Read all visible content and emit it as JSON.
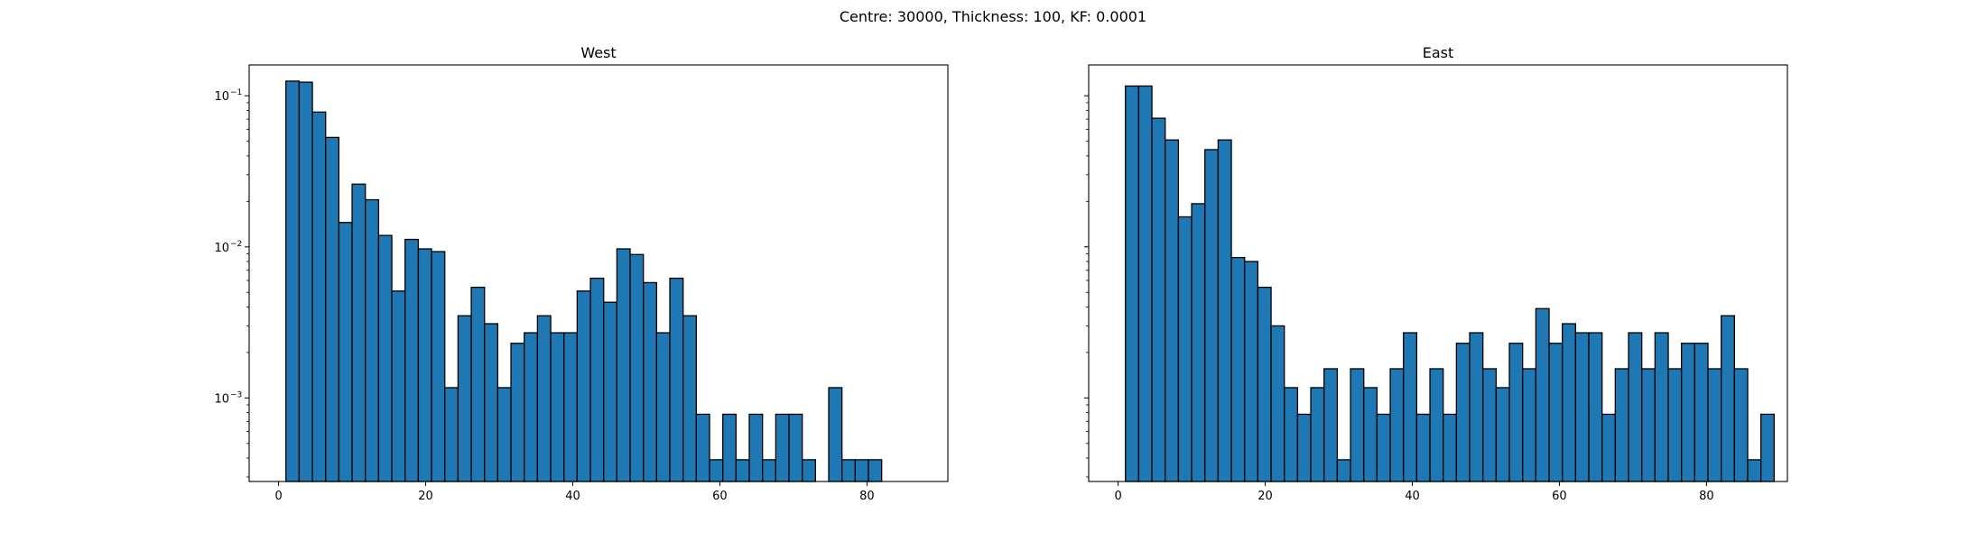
{
  "figure": {
    "suptitle": "Centre: 30000, Thickness: 100, KF: 0.0001"
  },
  "chart_data": [
    {
      "type": "bar",
      "subtype": "histogram",
      "title": "West",
      "xlabel": "",
      "ylabel": "",
      "yscale": "log",
      "xlim": [
        -4,
        91
      ],
      "ylim": [
        0.00028,
        0.16
      ],
      "x_ticks": [
        0,
        20,
        40,
        60,
        80
      ],
      "y_ticks": [
        0.001,
        0.01,
        0.1
      ],
      "y_tick_labels": [
        [
          "10",
          "−3"
        ],
        [
          "10",
          "−2"
        ],
        [
          "10",
          "−1"
        ]
      ],
      "show_y_tick_labels": true,
      "bin_start": 1,
      "bin_width": 1.8,
      "values": [
        0.125,
        0.123,
        0.078,
        0.053,
        0.0145,
        0.026,
        0.0205,
        0.0119,
        0.0051,
        0.0112,
        0.0097,
        0.0093,
        0.00117,
        0.0035,
        0.0054,
        0.0031,
        0.00117,
        0.0023,
        0.0027,
        0.0035,
        0.0027,
        0.0027,
        0.0051,
        0.0062,
        0.0043,
        0.0097,
        0.0089,
        0.0058,
        0.0027,
        0.0062,
        0.0035,
        0.00078,
        0.00039,
        0.00078,
        0.00039,
        0.00078,
        0.00039,
        0.00078,
        0.00078,
        0.00039,
        0,
        0.00117,
        0.00039,
        0.00039,
        0.00039
      ],
      "bar_color": "#1f77b4",
      "edge_color": "#000000",
      "grid": false
    },
    {
      "type": "bar",
      "subtype": "histogram",
      "title": "East",
      "xlabel": "",
      "ylabel": "",
      "yscale": "log",
      "xlim": [
        -4,
        91
      ],
      "ylim": [
        0.00028,
        0.16
      ],
      "x_ticks": [
        0,
        20,
        40,
        60,
        80
      ],
      "y_ticks": [
        0.001,
        0.01,
        0.1
      ],
      "y_tick_labels": [],
      "show_y_tick_labels": false,
      "bin_start": 1,
      "bin_width": 1.8,
      "values": [
        0.116,
        0.116,
        0.071,
        0.051,
        0.0158,
        0.0193,
        0.044,
        0.051,
        0.0085,
        0.008,
        0.0054,
        0.003,
        0.00117,
        0.00078,
        0.00117,
        0.00156,
        0.00039,
        0.00156,
        0.00117,
        0.00078,
        0.00156,
        0.0027,
        0.00078,
        0.00156,
        0.00078,
        0.0023,
        0.0027,
        0.00156,
        0.00117,
        0.0023,
        0.00156,
        0.0039,
        0.0023,
        0.0031,
        0.0027,
        0.0027,
        0.00078,
        0.00156,
        0.0027,
        0.00156,
        0.0027,
        0.00156,
        0.0023,
        0.0023,
        0.00156,
        0.0035,
        0.00156,
        0.00039,
        0.00078
      ],
      "bar_color": "#1f77b4",
      "edge_color": "#000000",
      "grid": false
    }
  ]
}
